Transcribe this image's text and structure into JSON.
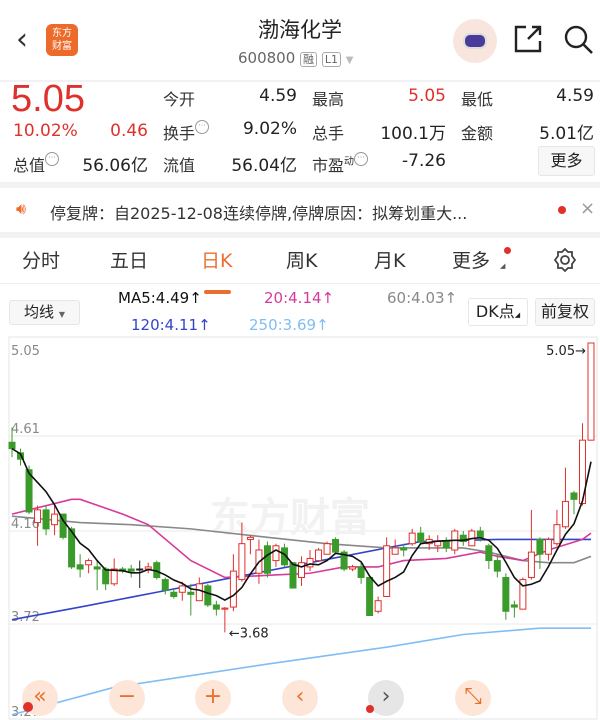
{
  "header": {
    "title": "渤海化学",
    "code": "600800",
    "badge_margin": "融",
    "badge_level": "L1",
    "logo_text": [
      "东方",
      "财富"
    ]
  },
  "quote": {
    "price": "5.05",
    "change_pct": "10.02%",
    "change": "0.46",
    "open_label": "今开",
    "open": "4.59",
    "high_label": "最高",
    "high": "5.05",
    "low_label": "最低",
    "low": "4.59",
    "turnover_label": "换手",
    "turnover": "9.02%",
    "volume_label": "总手",
    "volume": "100.1万",
    "amount_label": "金额",
    "amount": "5.01亿",
    "mktcap_label": "总值",
    "mktcap": "56.06亿",
    "float_label": "流值",
    "float_cap": "56.04亿",
    "pe_label": "市盈",
    "pe_sup": "动",
    "pe": "-7.26",
    "more_label": "更多"
  },
  "notice": {
    "text": "停复牌：自2025-12-08连续停牌,停牌原因：拟筹划重大..."
  },
  "tabs": [
    {
      "label": "分时"
    },
    {
      "label": "五日"
    },
    {
      "label": "日K",
      "active": true
    },
    {
      "label": "周K"
    },
    {
      "label": "月K"
    },
    {
      "label": "更多"
    }
  ],
  "ma_bar": {
    "selector": "均线",
    "ma5": "MA5:4.49↑",
    "ma20": "20:4.14↑",
    "ma60": "60:4.03↑",
    "ma120": "120:4.11↑",
    "ma250": "250:3.69↑",
    "dk": "DK点",
    "adjust": "前复权"
  },
  "colors": {
    "up": "#e0302c",
    "down": "#3a9a2a",
    "accent": "#e8702f",
    "ma5": "#111111",
    "ma20": "#d63a9a",
    "ma60": "#888888",
    "ma120": "#3344cc",
    "ma250": "#7fbef5"
  },
  "chart_data": {
    "type": "candlestick",
    "y_ticks": [
      "5.05",
      "4.61",
      "4.16",
      "3.72",
      "3.27"
    ],
    "ylim": [
      3.27,
      5.05
    ],
    "max_label": "5.05→",
    "min_label": "←3.68",
    "watermark": "东方财富",
    "ohlc": [
      [
        4.58,
        4.65,
        4.51,
        4.55
      ],
      [
        4.53,
        4.55,
        4.47,
        4.5
      ],
      [
        4.45,
        4.47,
        4.24,
        4.25
      ],
      [
        4.2,
        4.28,
        4.09,
        4.26
      ],
      [
        4.26,
        4.28,
        4.14,
        4.17
      ],
      [
        4.19,
        4.29,
        4.14,
        4.24
      ],
      [
        4.24,
        4.24,
        4.12,
        4.13
      ],
      [
        4.17,
        4.18,
        3.98,
        3.99
      ],
      [
        4.0,
        4.05,
        3.94,
        3.98
      ],
      [
        4.0,
        4.03,
        3.96,
        4.02
      ],
      [
        3.99,
        4.02,
        3.88,
        3.98
      ],
      [
        3.98,
        3.99,
        3.88,
        3.91
      ],
      [
        3.91,
        4.03,
        3.9,
        3.98
      ],
      [
        3.98,
        3.99,
        3.96,
        3.97
      ],
      [
        3.98,
        4.0,
        3.94,
        3.97
      ],
      [
        3.98,
        4.02,
        3.89,
        3.98
      ],
      [
        3.98,
        4.01,
        3.96,
        3.99
      ],
      [
        4.01,
        4.02,
        3.93,
        3.94
      ],
      [
        3.93,
        3.94,
        3.86,
        3.88
      ],
      [
        3.87,
        3.89,
        3.84,
        3.85
      ],
      [
        3.87,
        3.92,
        3.83,
        3.9
      ],
      [
        3.87,
        3.91,
        3.76,
        3.86
      ],
      [
        3.83,
        3.94,
        3.83,
        3.91
      ],
      [
        3.9,
        3.91,
        3.8,
        3.81
      ],
      [
        3.81,
        3.83,
        3.76,
        3.79
      ],
      [
        3.79,
        3.8,
        3.68,
        3.795
      ],
      [
        3.8,
        4.05,
        3.78,
        3.97
      ],
      [
        3.93,
        4.2,
        3.92,
        4.1
      ],
      [
        4.12,
        4.14,
        4.05,
        4.13
      ],
      [
        3.96,
        4.12,
        3.91,
        4.07
      ],
      [
        4.09,
        4.11,
        3.94,
        3.96
      ],
      [
        4.02,
        4.1,
        3.99,
        4.09
      ],
      [
        4.08,
        4.1,
        3.99,
        4.0
      ],
      [
        4.01,
        4.01,
        3.89,
        3.89
      ],
      [
        3.94,
        4.04,
        3.9,
        4.01
      ],
      [
        3.99,
        4.07,
        3.97,
        4.03
      ],
      [
        4.02,
        4.08,
        4.02,
        4.07
      ],
      [
        4.05,
        4.11,
        4.05,
        4.1
      ],
      [
        4.12,
        4.13,
        4.05,
        4.06
      ],
      [
        4.06,
        4.07,
        3.97,
        3.98
      ],
      [
        3.98,
        4.0,
        3.97,
        3.99
      ],
      [
        3.99,
        4.01,
        3.91,
        3.94
      ],
      [
        3.94,
        3.95,
        3.76,
        3.76
      ],
      [
        3.78,
        3.85,
        3.77,
        3.83
      ],
      [
        3.85,
        4.13,
        3.85,
        4.09
      ],
      [
        4.05,
        4.12,
        4.05,
        4.08
      ],
      [
        4.08,
        4.1,
        4.04,
        4.07
      ],
      [
        4.1,
        4.17,
        4.09,
        4.15
      ],
      [
        4.15,
        4.18,
        4.1,
        4.11
      ],
      [
        4.1,
        4.14,
        4.07,
        4.12
      ],
      [
        4.09,
        4.14,
        4.06,
        4.11
      ],
      [
        4.11,
        4.13,
        4.06,
        4.08
      ],
      [
        4.07,
        4.17,
        4.05,
        4.16
      ],
      [
        4.14,
        4.16,
        4.09,
        4.11
      ],
      [
        4.09,
        4.17,
        4.09,
        4.16
      ],
      [
        4.16,
        4.18,
        4.11,
        4.13
      ],
      [
        4.09,
        4.1,
        3.98,
        4.02
      ],
      [
        4.02,
        4.05,
        3.94,
        3.97
      ],
      [
        3.94,
        3.96,
        3.74,
        3.78
      ],
      [
        3.81,
        3.83,
        3.75,
        3.8
      ],
      [
        3.79,
        3.94,
        3.79,
        3.93
      ],
      [
        3.94,
        4.26,
        3.93,
        4.06
      ],
      [
        4.12,
        4.13,
        3.98,
        4.05
      ],
      [
        4.05,
        4.13,
        4.02,
        4.12
      ],
      [
        4.1,
        4.26,
        4.09,
        4.19
      ],
      [
        4.18,
        4.46,
        4.17,
        4.3
      ],
      [
        4.34,
        4.35,
        4.24,
        4.31
      ],
      [
        4.29,
        4.67,
        4.28,
        4.59
      ],
      [
        4.59,
        5.05,
        4.59,
        5.05
      ]
    ],
    "ma_lines": {
      "ma20": [
        [
          0,
          4.24
        ],
        [
          7,
          4.31
        ],
        [
          8,
          4.31
        ],
        [
          13,
          4.24
        ],
        [
          16,
          4.19
        ],
        [
          21,
          4.02
        ],
        [
          25,
          3.94
        ],
        [
          30,
          3.95
        ],
        [
          35,
          3.96
        ],
        [
          39,
          3.99
        ],
        [
          43,
          3.99
        ],
        [
          46,
          4.02
        ],
        [
          51,
          4.03
        ],
        [
          55,
          4.06
        ],
        [
          57,
          4.04
        ],
        [
          60,
          4.02
        ],
        [
          63,
          4.07
        ],
        [
          67,
          4.12
        ],
        [
          68,
          4.15
        ]
      ],
      "ma60": [
        [
          0,
          4.23
        ],
        [
          8,
          4.2
        ],
        [
          14,
          4.19
        ],
        [
          21,
          4.17
        ],
        [
          30,
          4.13
        ],
        [
          37,
          4.1
        ],
        [
          44,
          4.08
        ],
        [
          53,
          4.08
        ],
        [
          56,
          4.06
        ],
        [
          60,
          4.02
        ],
        [
          63,
          4.01
        ],
        [
          66,
          4.01
        ],
        [
          68,
          4.04
        ]
      ],
      "ma120": [
        [
          0,
          3.74
        ],
        [
          8,
          3.8
        ],
        [
          17,
          3.87
        ],
        [
          26,
          3.94
        ],
        [
          35,
          4.01
        ],
        [
          44,
          4.08
        ],
        [
          48,
          4.11
        ],
        [
          57,
          4.12
        ],
        [
          68,
          4.12
        ]
      ],
      "ma250": [
        [
          0,
          3.29
        ],
        [
          12,
          3.42
        ],
        [
          30,
          3.53
        ],
        [
          44,
          3.61
        ],
        [
          53,
          3.67
        ],
        [
          62,
          3.7
        ],
        [
          68,
          3.7
        ]
      ]
    }
  },
  "controls": [
    {
      "icon": "«"
    },
    {
      "icon": "−"
    },
    {
      "icon": "+"
    },
    {
      "icon": "‹"
    },
    {
      "icon": "›"
    },
    {
      "icon": "⤡"
    }
  ]
}
